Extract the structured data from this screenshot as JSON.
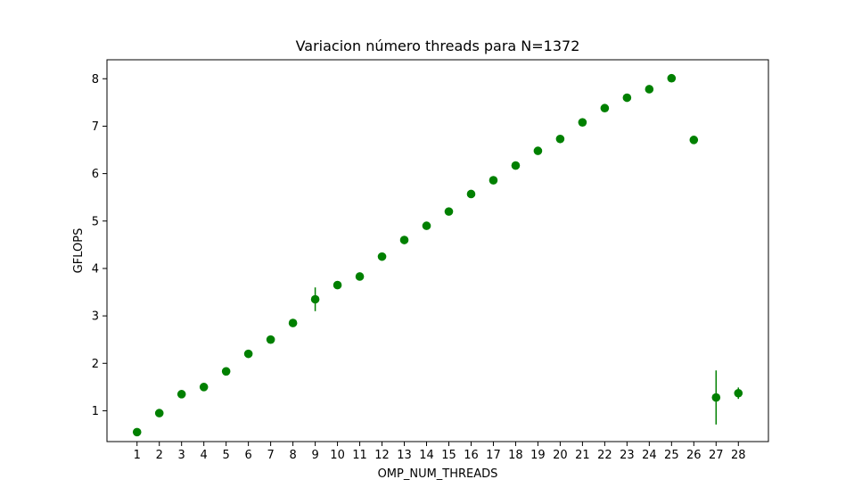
{
  "chart_data": {
    "type": "scatter",
    "title": "Variacion número threads para N=1372",
    "xlabel": "OMP_NUM_THREADS",
    "ylabel": "GFLOPS",
    "x": [
      1,
      2,
      3,
      4,
      5,
      6,
      7,
      8,
      9,
      10,
      11,
      12,
      13,
      14,
      15,
      16,
      17,
      18,
      19,
      20,
      21,
      22,
      23,
      24,
      25,
      26,
      27,
      28
    ],
    "x_tick_labels": [
      "1",
      "2",
      "3",
      "4",
      "5",
      "6",
      "7",
      "8",
      "9",
      "10",
      "11",
      "12",
      "13",
      "14",
      "15",
      "16",
      "17",
      "18",
      "19",
      "20",
      "21",
      "22",
      "23",
      "24",
      "25",
      "26",
      "27",
      "28"
    ],
    "y_ticks": [
      1,
      2,
      3,
      4,
      5,
      6,
      7,
      8
    ],
    "y_tick_labels": [
      "1",
      "2",
      "3",
      "4",
      "5",
      "6",
      "7",
      "8"
    ],
    "xlim": [
      -0.35,
      29.35
    ],
    "ylim": [
      0.35,
      8.4
    ],
    "series": [
      {
        "color": "#008000",
        "values": [
          0.55,
          0.95,
          1.35,
          1.5,
          1.83,
          2.2,
          2.5,
          2.85,
          3.35,
          3.65,
          3.83,
          4.25,
          4.6,
          4.9,
          5.2,
          5.57,
          5.86,
          6.17,
          6.48,
          6.73,
          7.08,
          7.38,
          7.6,
          7.78,
          8.01,
          6.71,
          1.28,
          1.37
        ],
        "errors": [
          0.02,
          0.02,
          0.02,
          0.02,
          0.02,
          0.02,
          0.02,
          0.02,
          0.25,
          0.02,
          0.02,
          0.02,
          0.02,
          0.02,
          0.02,
          0.02,
          0.02,
          0.05,
          0.02,
          0.02,
          0.02,
          0.02,
          0.02,
          0.02,
          0.02,
          0.06,
          0.57,
          0.12
        ]
      }
    ],
    "grid": false,
    "legend": "none"
  }
}
